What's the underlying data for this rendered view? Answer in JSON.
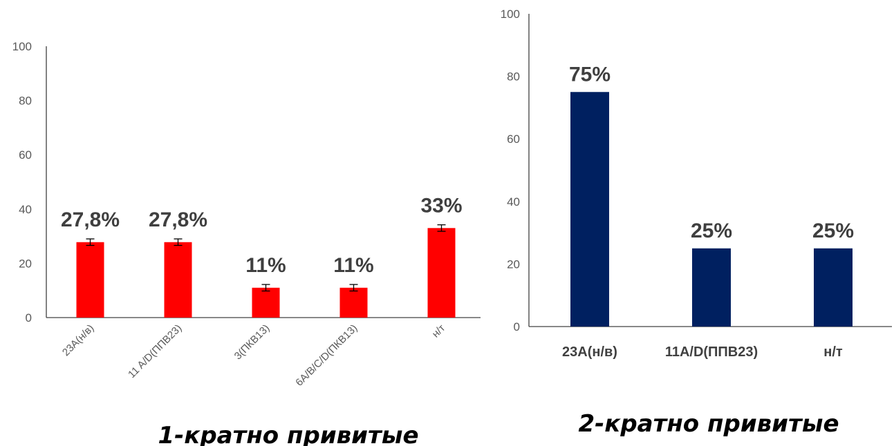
{
  "colors": {
    "chart1_bar": "#ff0000",
    "chart2_bar": "#002060",
    "error_bar": "#000000",
    "axis": "#404040"
  },
  "chart_data": [
    {
      "type": "bar",
      "title": "1-кратно привитые",
      "categories": [
        "23A(н/в)",
        "11 A/D(ППВ23)",
        "3(ПКВ13)",
        "6A/B/C/D(ПКВ13)",
        "н/т"
      ],
      "values": [
        27.8,
        27.8,
        11,
        11,
        33
      ],
      "data_labels": [
        "27,8%",
        "27,8%",
        "11%",
        "11%",
        "33%"
      ],
      "error_bars": true,
      "ylim": [
        0,
        100
      ],
      "yticks": [
        "0",
        "20",
        "40",
        "60",
        "80",
        "100"
      ],
      "grid": false,
      "xlabel": "",
      "ylabel": ""
    },
    {
      "type": "bar",
      "title": "2-кратно привитые",
      "categories": [
        "23A(н/в)",
        "11A/D(ППВ23)",
        "н/т"
      ],
      "values": [
        75,
        25,
        25
      ],
      "data_labels": [
        "75%",
        "25%",
        "25%"
      ],
      "error_bars": false,
      "ylim": [
        0,
        100
      ],
      "yticks": [
        "0",
        "20",
        "40",
        "60",
        "80",
        "100"
      ],
      "grid": false,
      "xlabel": "",
      "ylabel": ""
    }
  ]
}
